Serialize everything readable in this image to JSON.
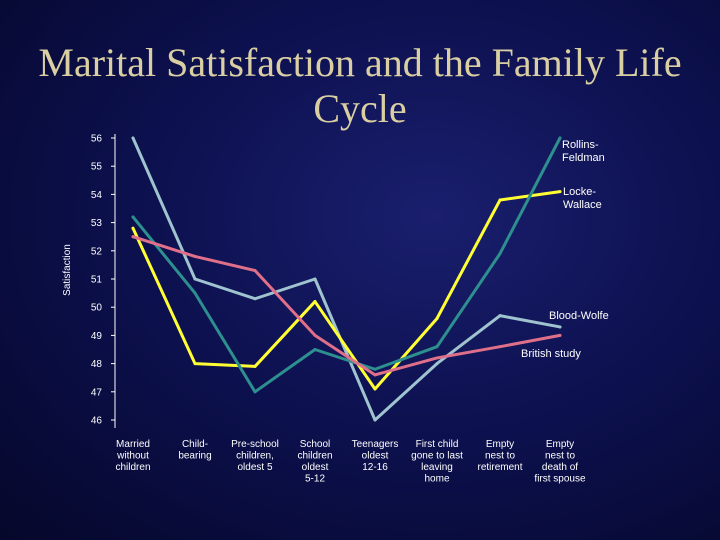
{
  "chart_data": {
    "type": "line",
    "title": "Marital Satisfaction and the Family Life Cycle",
    "ylabel": "Satisfaction",
    "xlabel": "",
    "ylim": [
      46,
      56
    ],
    "yticks": [
      56,
      55,
      54,
      53,
      52,
      51,
      50,
      49,
      48,
      47,
      46
    ],
    "categories": [
      [
        "Married",
        "without",
        "children"
      ],
      [
        "Child-",
        "bearing"
      ],
      [
        "Pre-school",
        "children,",
        "oldest 5"
      ],
      [
        "School",
        "children",
        "oldest",
        "5-12"
      ],
      [
        "Teenagers",
        "oldest",
        "12-16"
      ],
      [
        "First child",
        "gone to last",
        "leaving",
        "home"
      ],
      [
        "Empty",
        "nest to",
        "retirement"
      ],
      [
        "Empty",
        "nest to",
        "death of",
        "first spouse"
      ]
    ],
    "series": [
      {
        "name": "Rollins-Feldman",
        "label_lines": [
          "Rollins-",
          "Feldman"
        ],
        "color": "#9fc3cf",
        "values": [
          56.0,
          51.0,
          50.3,
          51.0,
          46.0,
          48.0,
          49.7,
          49.3
        ]
      },
      {
        "name": "Locke-Wallace",
        "label_lines": [
          "Locke-",
          "Wallace"
        ],
        "color": "#ffff33",
        "values": [
          52.8,
          48.0,
          47.9,
          50.2,
          47.1,
          49.6,
          53.8,
          54.1
        ]
      },
      {
        "name": "Blood-Wolfe",
        "label_lines": [
          "Blood-Wolfe"
        ],
        "color": "#2e8f8f",
        "values": [
          53.2,
          50.5,
          47.0,
          48.5,
          47.8,
          48.6,
          51.9,
          56.0
        ]
      },
      {
        "name": "British study",
        "label_lines": [
          "British study"
        ],
        "color": "#e0708a",
        "values": [
          52.5,
          51.8,
          51.3,
          49.0,
          47.6,
          48.2,
          48.6,
          49.0
        ]
      }
    ]
  }
}
